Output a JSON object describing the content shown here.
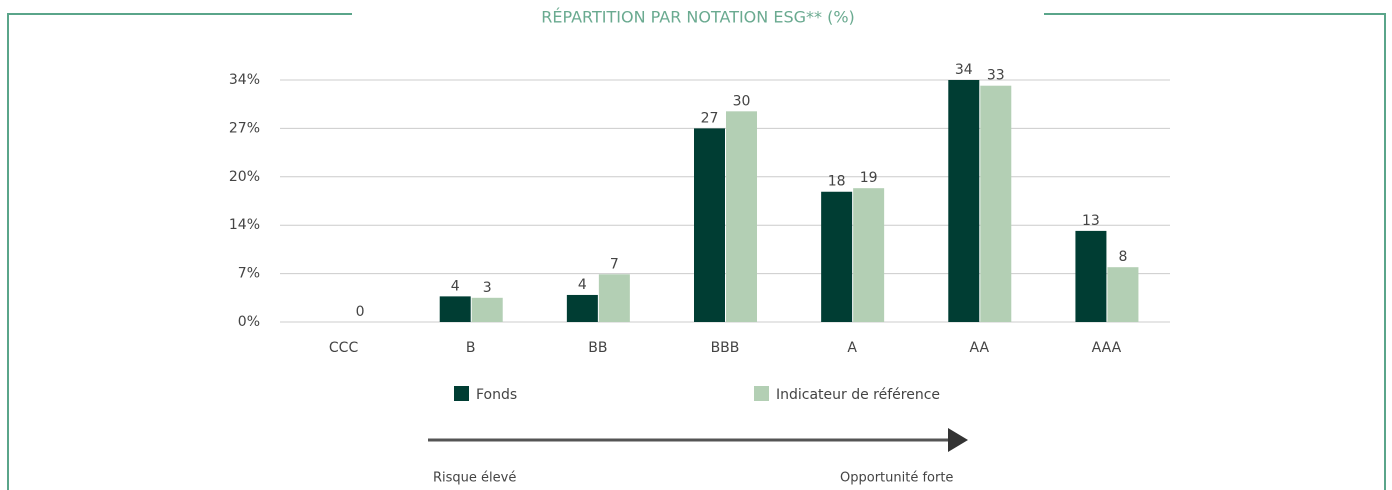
{
  "chart_data": {
    "type": "bar",
    "title": "RÉPARTITION PAR NOTATION ESG** (%)",
    "categories": [
      "CCC",
      "B",
      "BB",
      "BBB",
      "A",
      "AA",
      "AAA"
    ],
    "series": [
      {
        "name": "Fonds",
        "color": "#003d33",
        "values": [
          null,
          3.6,
          3.8,
          27.2,
          18.3,
          34,
          12.8
        ],
        "value_labels": [
          null,
          "4",
          "4",
          "27",
          "18",
          "34",
          "13"
        ]
      },
      {
        "name": "Indicateur de référence",
        "color": "#b3cfb4",
        "values": [
          0,
          3.4,
          6.7,
          29.6,
          18.8,
          33.2,
          7.7
        ],
        "value_labels": [
          "0",
          "3",
          "7",
          "30",
          "19",
          "33",
          "8"
        ]
      }
    ],
    "ylim": [
      0,
      34
    ],
    "yticks": [
      {
        "value": 0,
        "label": "0%"
      },
      {
        "value": 6.8,
        "label": "7%"
      },
      {
        "value": 13.6,
        "label": "14%"
      },
      {
        "value": 20.4,
        "label": "20%"
      },
      {
        "value": 27.2,
        "label": "27%"
      },
      {
        "value": 34,
        "label": "34%"
      }
    ],
    "grid": true,
    "annotations": [
      "Risque élevé",
      "Opportunité forte"
    ]
  }
}
